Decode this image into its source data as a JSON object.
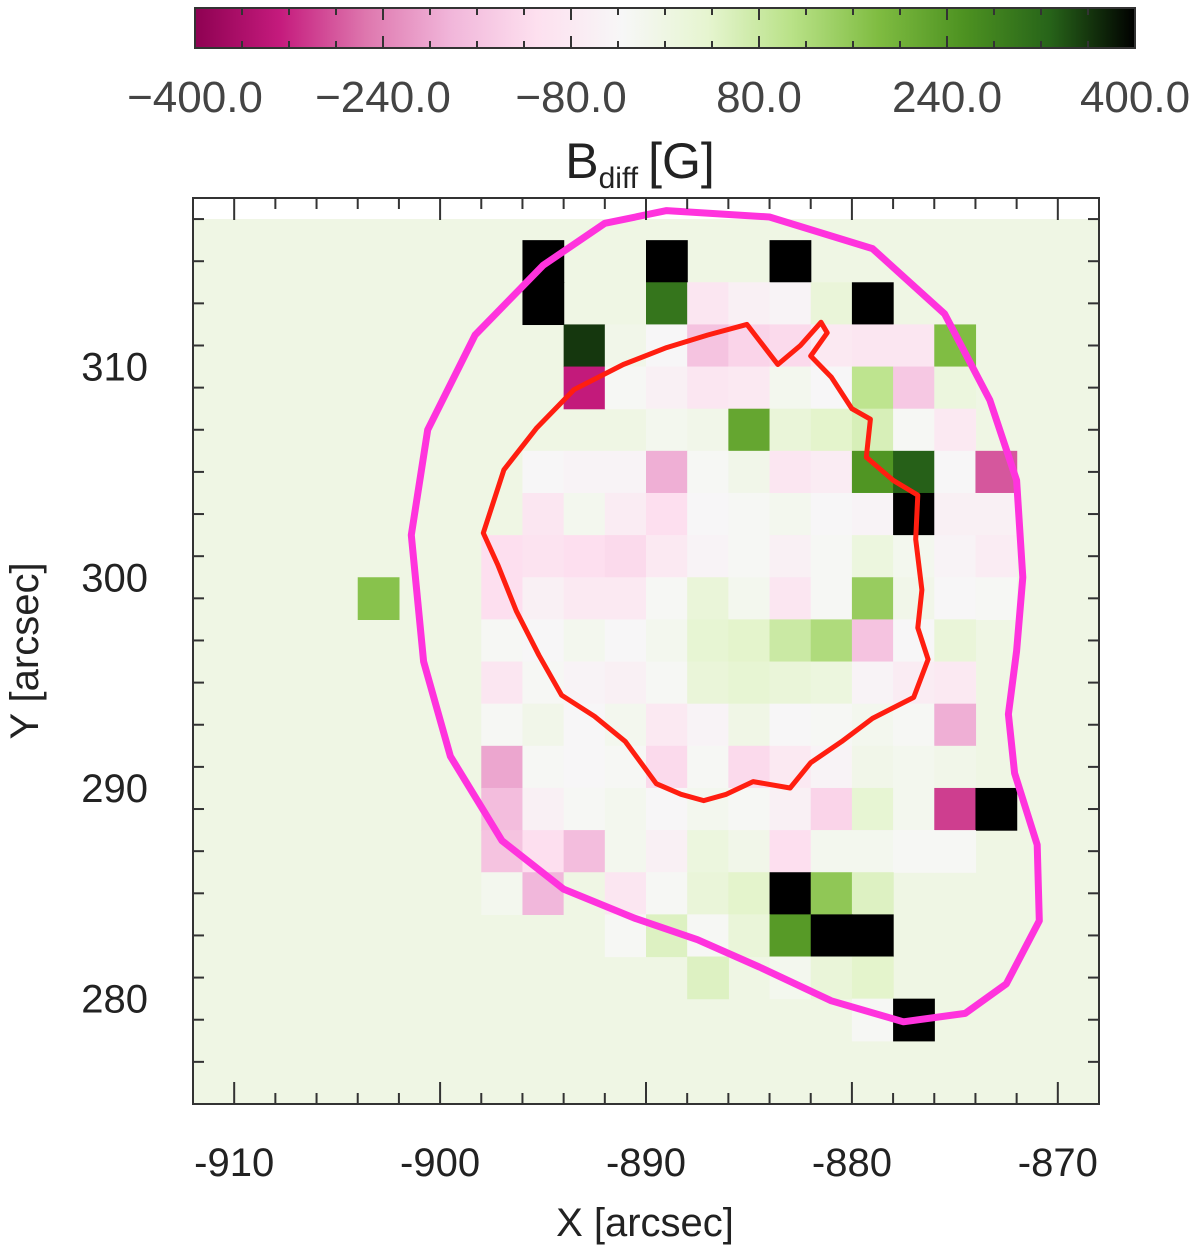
{
  "chart_data": {
    "type": "heatmap",
    "xlabel": "X [arcsec]",
    "ylabel": "Y [arcsec]",
    "xlim": [
      -912,
      -868
    ],
    "ylim": [
      275,
      318
    ],
    "xticks": [
      -910,
      -900,
      -890,
      -880,
      -870
    ],
    "yticks": [
      280,
      290,
      300,
      310
    ],
    "colorbar": {
      "title_main": "B",
      "title_sub": "diff",
      "title_unit": "[G]",
      "min": -400,
      "max": 400,
      "ticks": [
        -400,
        -240,
        -80,
        80,
        240,
        400
      ],
      "tick_labels": [
        "−400.0",
        "−240.0",
        "−80.0",
        "80.0",
        "240.0",
        "400.0"
      ],
      "colormap": [
        "#8e0152",
        "#c51b7d",
        "#de77ae",
        "#f1b6da",
        "#fde0ef",
        "#f7f7f7",
        "#e6f5d0",
        "#b8e186",
        "#7fbc41",
        "#4d9221",
        "#276419",
        "#000000"
      ]
    },
    "background_value": 0,
    "cell_size_arcsec": 2,
    "cells": [
      {
        "x": -895,
        "y": 315,
        "v": 600
      },
      {
        "x": -889,
        "y": 315,
        "v": 600
      },
      {
        "x": -883,
        "y": 315,
        "v": 600
      },
      {
        "x": -895,
        "y": 313,
        "v": 600
      },
      {
        "x": -889,
        "y": 313,
        "v": 300
      },
      {
        "x": -887,
        "y": 313,
        "v": -90
      },
      {
        "x": -885,
        "y": 313,
        "v": -60
      },
      {
        "x": -883,
        "y": 313,
        "v": -50
      },
      {
        "x": -881,
        "y": 313,
        "v": 20
      },
      {
        "x": -879,
        "y": 313,
        "v": 600
      },
      {
        "x": -893,
        "y": 311,
        "v": 360
      },
      {
        "x": -891,
        "y": 311,
        "v": -10
      },
      {
        "x": -889,
        "y": 311,
        "v": -40
      },
      {
        "x": -887,
        "y": 311,
        "v": -160
      },
      {
        "x": -885,
        "y": 311,
        "v": -130
      },
      {
        "x": -883,
        "y": 311,
        "v": -120
      },
      {
        "x": -881,
        "y": 311,
        "v": -80
      },
      {
        "x": -879,
        "y": 311,
        "v": -90
      },
      {
        "x": -877,
        "y": 311,
        "v": -90
      },
      {
        "x": -875,
        "y": 311,
        "v": 180
      },
      {
        "x": -893,
        "y": 309,
        "v": -330
      },
      {
        "x": -891,
        "y": 309,
        "v": -30
      },
      {
        "x": -889,
        "y": 309,
        "v": -60
      },
      {
        "x": -887,
        "y": 309,
        "v": -90
      },
      {
        "x": -885,
        "y": 309,
        "v": -80
      },
      {
        "x": -883,
        "y": 309,
        "v": -20
      },
      {
        "x": -881,
        "y": 309,
        "v": -40
      },
      {
        "x": -879,
        "y": 309,
        "v": 100
      },
      {
        "x": -877,
        "y": 309,
        "v": -150
      },
      {
        "x": -875,
        "y": 309,
        "v": 10
      },
      {
        "x": -889,
        "y": 307,
        "v": -20
      },
      {
        "x": -887,
        "y": 307,
        "v": -10
      },
      {
        "x": -885,
        "y": 307,
        "v": 220
      },
      {
        "x": -883,
        "y": 307,
        "v": 20
      },
      {
        "x": -881,
        "y": 307,
        "v": 40
      },
      {
        "x": -879,
        "y": 307,
        "v": 60
      },
      {
        "x": -877,
        "y": 307,
        "v": -30
      },
      {
        "x": -875,
        "y": 307,
        "v": -80
      },
      {
        "x": -895,
        "y": 305,
        "v": -40
      },
      {
        "x": -893,
        "y": 305,
        "v": -50
      },
      {
        "x": -891,
        "y": 305,
        "v": -50
      },
      {
        "x": -889,
        "y": 305,
        "v": -190
      },
      {
        "x": -887,
        "y": 305,
        "v": -30
      },
      {
        "x": -885,
        "y": 305,
        "v": -10
      },
      {
        "x": -883,
        "y": 305,
        "v": -90
      },
      {
        "x": -881,
        "y": 305,
        "v": -70
      },
      {
        "x": -879,
        "y": 305,
        "v": 250
      },
      {
        "x": -877,
        "y": 305,
        "v": 330
      },
      {
        "x": -875,
        "y": 305,
        "v": -40
      },
      {
        "x": -873,
        "y": 305,
        "v": -280
      },
      {
        "x": -895,
        "y": 303,
        "v": -90
      },
      {
        "x": -893,
        "y": 303,
        "v": -20
      },
      {
        "x": -891,
        "y": 303,
        "v": -70
      },
      {
        "x": -889,
        "y": 303,
        "v": -110
      },
      {
        "x": -887,
        "y": 303,
        "v": -40
      },
      {
        "x": -885,
        "y": 303,
        "v": -30
      },
      {
        "x": -883,
        "y": 303,
        "v": -20
      },
      {
        "x": -881,
        "y": 303,
        "v": -40
      },
      {
        "x": -879,
        "y": 303,
        "v": -50
      },
      {
        "x": -877,
        "y": 303,
        "v": 600
      },
      {
        "x": -875,
        "y": 303,
        "v": -60
      },
      {
        "x": -873,
        "y": 303,
        "v": -60
      },
      {
        "x": -897,
        "y": 301,
        "v": -110
      },
      {
        "x": -895,
        "y": 301,
        "v": -100
      },
      {
        "x": -893,
        "y": 301,
        "v": -110
      },
      {
        "x": -891,
        "y": 301,
        "v": -120
      },
      {
        "x": -889,
        "y": 301,
        "v": -80
      },
      {
        "x": -887,
        "y": 301,
        "v": -50
      },
      {
        "x": -885,
        "y": 301,
        "v": -30
      },
      {
        "x": -883,
        "y": 301,
        "v": -60
      },
      {
        "x": -881,
        "y": 301,
        "v": -30
      },
      {
        "x": -879,
        "y": 301,
        "v": 10
      },
      {
        "x": -877,
        "y": 301,
        "v": -20
      },
      {
        "x": -875,
        "y": 301,
        "v": -50
      },
      {
        "x": -873,
        "y": 301,
        "v": -70
      },
      {
        "x": -903,
        "y": 299,
        "v": 170
      },
      {
        "x": -897,
        "y": 299,
        "v": -110
      },
      {
        "x": -895,
        "y": 299,
        "v": -60
      },
      {
        "x": -893,
        "y": 299,
        "v": -80
      },
      {
        "x": -891,
        "y": 299,
        "v": -80
      },
      {
        "x": -889,
        "y": 299,
        "v": -30
      },
      {
        "x": -887,
        "y": 299,
        "v": 20
      },
      {
        "x": -885,
        "y": 299,
        "v": -20
      },
      {
        "x": -883,
        "y": 299,
        "v": -90
      },
      {
        "x": -881,
        "y": 299,
        "v": -30
      },
      {
        "x": -879,
        "y": 299,
        "v": 150
      },
      {
        "x": -877,
        "y": 299,
        "v": -10
      },
      {
        "x": -875,
        "y": 299,
        "v": -40
      },
      {
        "x": -873,
        "y": 299,
        "v": -30
      },
      {
        "x": -897,
        "y": 297,
        "v": -30
      },
      {
        "x": -895,
        "y": 297,
        "v": -40
      },
      {
        "x": -893,
        "y": 297,
        "v": -20
      },
      {
        "x": -891,
        "y": 297,
        "v": -40
      },
      {
        "x": -889,
        "y": 297,
        "v": -20
      },
      {
        "x": -887,
        "y": 297,
        "v": 30
      },
      {
        "x": -885,
        "y": 297,
        "v": 40
      },
      {
        "x": -883,
        "y": 297,
        "v": 80
      },
      {
        "x": -881,
        "y": 297,
        "v": 120
      },
      {
        "x": -879,
        "y": 297,
        "v": -160
      },
      {
        "x": -877,
        "y": 297,
        "v": -40
      },
      {
        "x": -875,
        "y": 297,
        "v": 20
      },
      {
        "x": -897,
        "y": 295,
        "v": -90
      },
      {
        "x": -895,
        "y": 295,
        "v": -30
      },
      {
        "x": -893,
        "y": 295,
        "v": -50
      },
      {
        "x": -891,
        "y": 295,
        "v": -60
      },
      {
        "x": -889,
        "y": 295,
        "v": -30
      },
      {
        "x": -887,
        "y": 295,
        "v": 20
      },
      {
        "x": -885,
        "y": 295,
        "v": 30
      },
      {
        "x": -883,
        "y": 295,
        "v": 20
      },
      {
        "x": -881,
        "y": 295,
        "v": 10
      },
      {
        "x": -879,
        "y": 295,
        "v": -50
      },
      {
        "x": -877,
        "y": 295,
        "v": -70
      },
      {
        "x": -875,
        "y": 295,
        "v": -80
      },
      {
        "x": -897,
        "y": 293,
        "v": -30
      },
      {
        "x": -895,
        "y": 293,
        "v": -10
      },
      {
        "x": -893,
        "y": 293,
        "v": -40
      },
      {
        "x": -891,
        "y": 293,
        "v": -20
      },
      {
        "x": -889,
        "y": 293,
        "v": -80
      },
      {
        "x": -887,
        "y": 293,
        "v": -50
      },
      {
        "x": -885,
        "y": 293,
        "v": -5
      },
      {
        "x": -883,
        "y": 293,
        "v": -40
      },
      {
        "x": -881,
        "y": 293,
        "v": -30
      },
      {
        "x": -879,
        "y": 293,
        "v": -20
      },
      {
        "x": -877,
        "y": 293,
        "v": -30
      },
      {
        "x": -875,
        "y": 293,
        "v": -190
      },
      {
        "x": -897,
        "y": 291,
        "v": -200
      },
      {
        "x": -895,
        "y": 291,
        "v": -30
      },
      {
        "x": -893,
        "y": 291,
        "v": -40
      },
      {
        "x": -891,
        "y": 291,
        "v": -30
      },
      {
        "x": -889,
        "y": 291,
        "v": -120
      },
      {
        "x": -887,
        "y": 291,
        "v": -30
      },
      {
        "x": -885,
        "y": 291,
        "v": -120
      },
      {
        "x": -883,
        "y": 291,
        "v": -80
      },
      {
        "x": -881,
        "y": 291,
        "v": -50
      },
      {
        "x": -879,
        "y": 291,
        "v": -10
      },
      {
        "x": -877,
        "y": 291,
        "v": -20
      },
      {
        "x": -875,
        "y": 291,
        "v": -10
      },
      {
        "x": -897,
        "y": 289,
        "v": -170
      },
      {
        "x": -895,
        "y": 289,
        "v": -60
      },
      {
        "x": -893,
        "y": 289,
        "v": -30
      },
      {
        "x": -891,
        "y": 289,
        "v": -20
      },
      {
        "x": -889,
        "y": 289,
        "v": -40
      },
      {
        "x": -887,
        "y": 289,
        "v": -20
      },
      {
        "x": -885,
        "y": 289,
        "v": -30
      },
      {
        "x": -883,
        "y": 289,
        "v": -60
      },
      {
        "x": -881,
        "y": 289,
        "v": -130
      },
      {
        "x": -879,
        "y": 289,
        "v": 30
      },
      {
        "x": -877,
        "y": 289,
        "v": -20
      },
      {
        "x": -875,
        "y": 289,
        "v": -300
      },
      {
        "x": -873,
        "y": 289,
        "v": 600
      },
      {
        "x": -897,
        "y": 287,
        "v": -160
      },
      {
        "x": -895,
        "y": 287,
        "v": -110
      },
      {
        "x": -893,
        "y": 287,
        "v": -170
      },
      {
        "x": -891,
        "y": 287,
        "v": -20
      },
      {
        "x": -889,
        "y": 287,
        "v": -60
      },
      {
        "x": -887,
        "y": 287,
        "v": 10
      },
      {
        "x": -885,
        "y": 287,
        "v": -10
      },
      {
        "x": -883,
        "y": 287,
        "v": -110
      },
      {
        "x": -881,
        "y": 287,
        "v": -20
      },
      {
        "x": -879,
        "y": 287,
        "v": -20
      },
      {
        "x": -877,
        "y": 287,
        "v": -30
      },
      {
        "x": -875,
        "y": 287,
        "v": -30
      },
      {
        "x": -897,
        "y": 285,
        "v": -20
      },
      {
        "x": -895,
        "y": 285,
        "v": -180
      },
      {
        "x": -893,
        "y": 285,
        "v": 0
      },
      {
        "x": -891,
        "y": 285,
        "v": -90
      },
      {
        "x": -889,
        "y": 285,
        "v": -30
      },
      {
        "x": -887,
        "y": 285,
        "v": 20
      },
      {
        "x": -885,
        "y": 285,
        "v": 40
      },
      {
        "x": -883,
        "y": 285,
        "v": 600
      },
      {
        "x": -881,
        "y": 285,
        "v": 160
      },
      {
        "x": -879,
        "y": 285,
        "v": 50
      },
      {
        "x": -891,
        "y": 283,
        "v": -30
      },
      {
        "x": -889,
        "y": 283,
        "v": 50
      },
      {
        "x": -887,
        "y": 283,
        "v": -30
      },
      {
        "x": -885,
        "y": 283,
        "v": 20
      },
      {
        "x": -883,
        "y": 283,
        "v": 240
      },
      {
        "x": -881,
        "y": 283,
        "v": 600
      },
      {
        "x": -879,
        "y": 283,
        "v": 600
      },
      {
        "x": -887,
        "y": 281,
        "v": 50
      },
      {
        "x": -883,
        "y": 281,
        "v": -20
      },
      {
        "x": -881,
        "y": 281,
        "v": 20
      },
      {
        "x": -879,
        "y": 281,
        "v": 40
      },
      {
        "x": -879,
        "y": 279,
        "v": -30
      },
      {
        "x": -877,
        "y": 279,
        "v": 600
      }
    ],
    "contours": [
      {
        "color": "#ff33dd",
        "closed": true,
        "points": [
          [
            -889,
            317.4
          ],
          [
            -884,
            317.1
          ],
          [
            -879,
            315.6
          ],
          [
            -875.5,
            312.5
          ],
          [
            -873.3,
            308.4
          ],
          [
            -872,
            304.6
          ],
          [
            -871.7,
            300
          ],
          [
            -872,
            296.5
          ],
          [
            -872.4,
            293.5
          ],
          [
            -872.1,
            290.7
          ],
          [
            -871,
            287.3
          ],
          [
            -870.9,
            283.7
          ],
          [
            -872.5,
            280.7
          ],
          [
            -874.5,
            279.3
          ],
          [
            -877.5,
            278.9
          ],
          [
            -881,
            279.9
          ],
          [
            -884.5,
            281.5
          ],
          [
            -887.5,
            282.8
          ],
          [
            -890.5,
            283.8
          ],
          [
            -894,
            285.2
          ],
          [
            -897,
            287.5
          ],
          [
            -899.5,
            291.5
          ],
          [
            -900.8,
            296
          ],
          [
            -901.4,
            302
          ],
          [
            -900.6,
            307
          ],
          [
            -898.3,
            311.5
          ],
          [
            -895,
            314.8
          ],
          [
            -892,
            316.8
          ]
        ]
      },
      {
        "color": "#ff1e10",
        "closed": true,
        "points": [
          [
            -885.1,
            312
          ],
          [
            -883.6,
            310.1
          ],
          [
            -882.5,
            311
          ],
          [
            -881.5,
            312.1
          ],
          [
            -881.2,
            311.6
          ],
          [
            -882,
            310.5
          ],
          [
            -881,
            309.5
          ],
          [
            -880,
            308
          ],
          [
            -879.1,
            307.5
          ],
          [
            -879.3,
            305.7
          ],
          [
            -878,
            304.6
          ],
          [
            -876.8,
            303.9
          ],
          [
            -876.9,
            301.8
          ],
          [
            -876.6,
            299.4
          ],
          [
            -876.8,
            297.6
          ],
          [
            -876.3,
            296.1
          ],
          [
            -877,
            294.3
          ],
          [
            -879,
            293.3
          ],
          [
            -880.5,
            292.2
          ],
          [
            -882,
            291.2
          ],
          [
            -883,
            290
          ],
          [
            -884.8,
            290.3
          ],
          [
            -886.1,
            289.7
          ],
          [
            -887.2,
            289.4
          ],
          [
            -888.3,
            289.7
          ],
          [
            -889.5,
            290.2
          ],
          [
            -891,
            292.2
          ],
          [
            -892.5,
            293.4
          ],
          [
            -894.1,
            294.4
          ],
          [
            -895.2,
            296.3
          ],
          [
            -896.3,
            298.4
          ],
          [
            -897.2,
            300.6
          ],
          [
            -897.9,
            302.1
          ],
          [
            -896.9,
            305.1
          ],
          [
            -895.3,
            307.1
          ],
          [
            -893.5,
            308.9
          ],
          [
            -891.1,
            310.1
          ],
          [
            -889,
            310.9
          ],
          [
            -887,
            311.5
          ]
        ]
      }
    ]
  }
}
